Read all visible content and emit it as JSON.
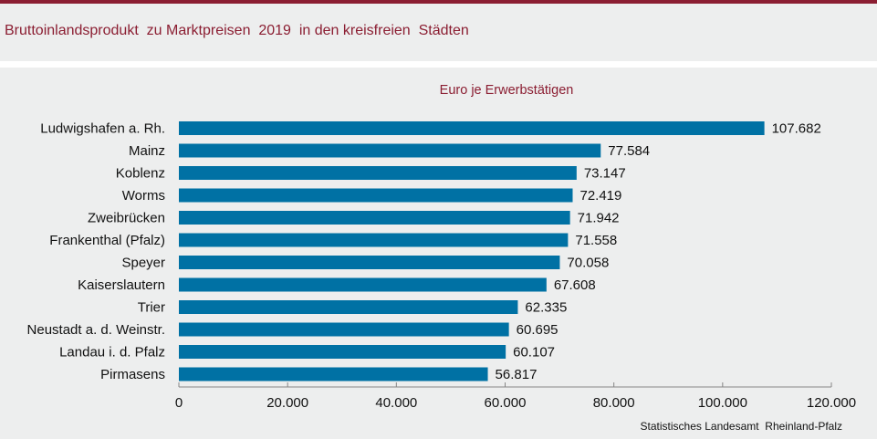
{
  "header": {
    "title": "Bruttoinlandsprodukt  zu Marktpreisen  2019  in den kreisfreien  Städten"
  },
  "source": "Statistisches Landesamt  Rheinland-Pfalz",
  "colors": {
    "brand": "#8b1e32",
    "bar": "#0071a4",
    "background": "#edeeee"
  },
  "chart_data": {
    "type": "bar",
    "orientation": "horizontal",
    "title": "Bruttoinlandsprodukt zu Marktpreisen 2019 in den kreisfreien Städten",
    "subtitle": "Euro je Erwerbstätigen",
    "xlabel": "",
    "ylabel": "",
    "categories": [
      "Ludwigshafen a. Rh.",
      "Mainz",
      "Koblenz",
      "Worms",
      "Zweibrücken",
      "Frankenthal (Pfalz)",
      "Speyer",
      "Kaiserslautern",
      "Trier",
      "Neustadt a. d. Weinstr.",
      "Landau i. d. Pfalz",
      "Pirmasens"
    ],
    "values": [
      107682,
      77584,
      73147,
      72419,
      71942,
      71558,
      70058,
      67608,
      62335,
      60695,
      60107,
      56817
    ],
    "value_labels": [
      "107.682",
      "77.584",
      "73.147",
      "72.419",
      "71.942",
      "71.558",
      "70.058",
      "67.608",
      "62.335",
      "60.695",
      "60.107",
      "56.817"
    ],
    "xlim": [
      0,
      120000
    ],
    "xticks": [
      0,
      20000,
      40000,
      60000,
      80000,
      100000,
      120000
    ],
    "xtick_labels": [
      "0",
      "20.000",
      "40.000",
      "60.000",
      "80.000",
      "100.000",
      "120.000"
    ],
    "grid": false,
    "legend": "none",
    "source": "Statistisches Landesamt Rheinland-Pfalz"
  }
}
